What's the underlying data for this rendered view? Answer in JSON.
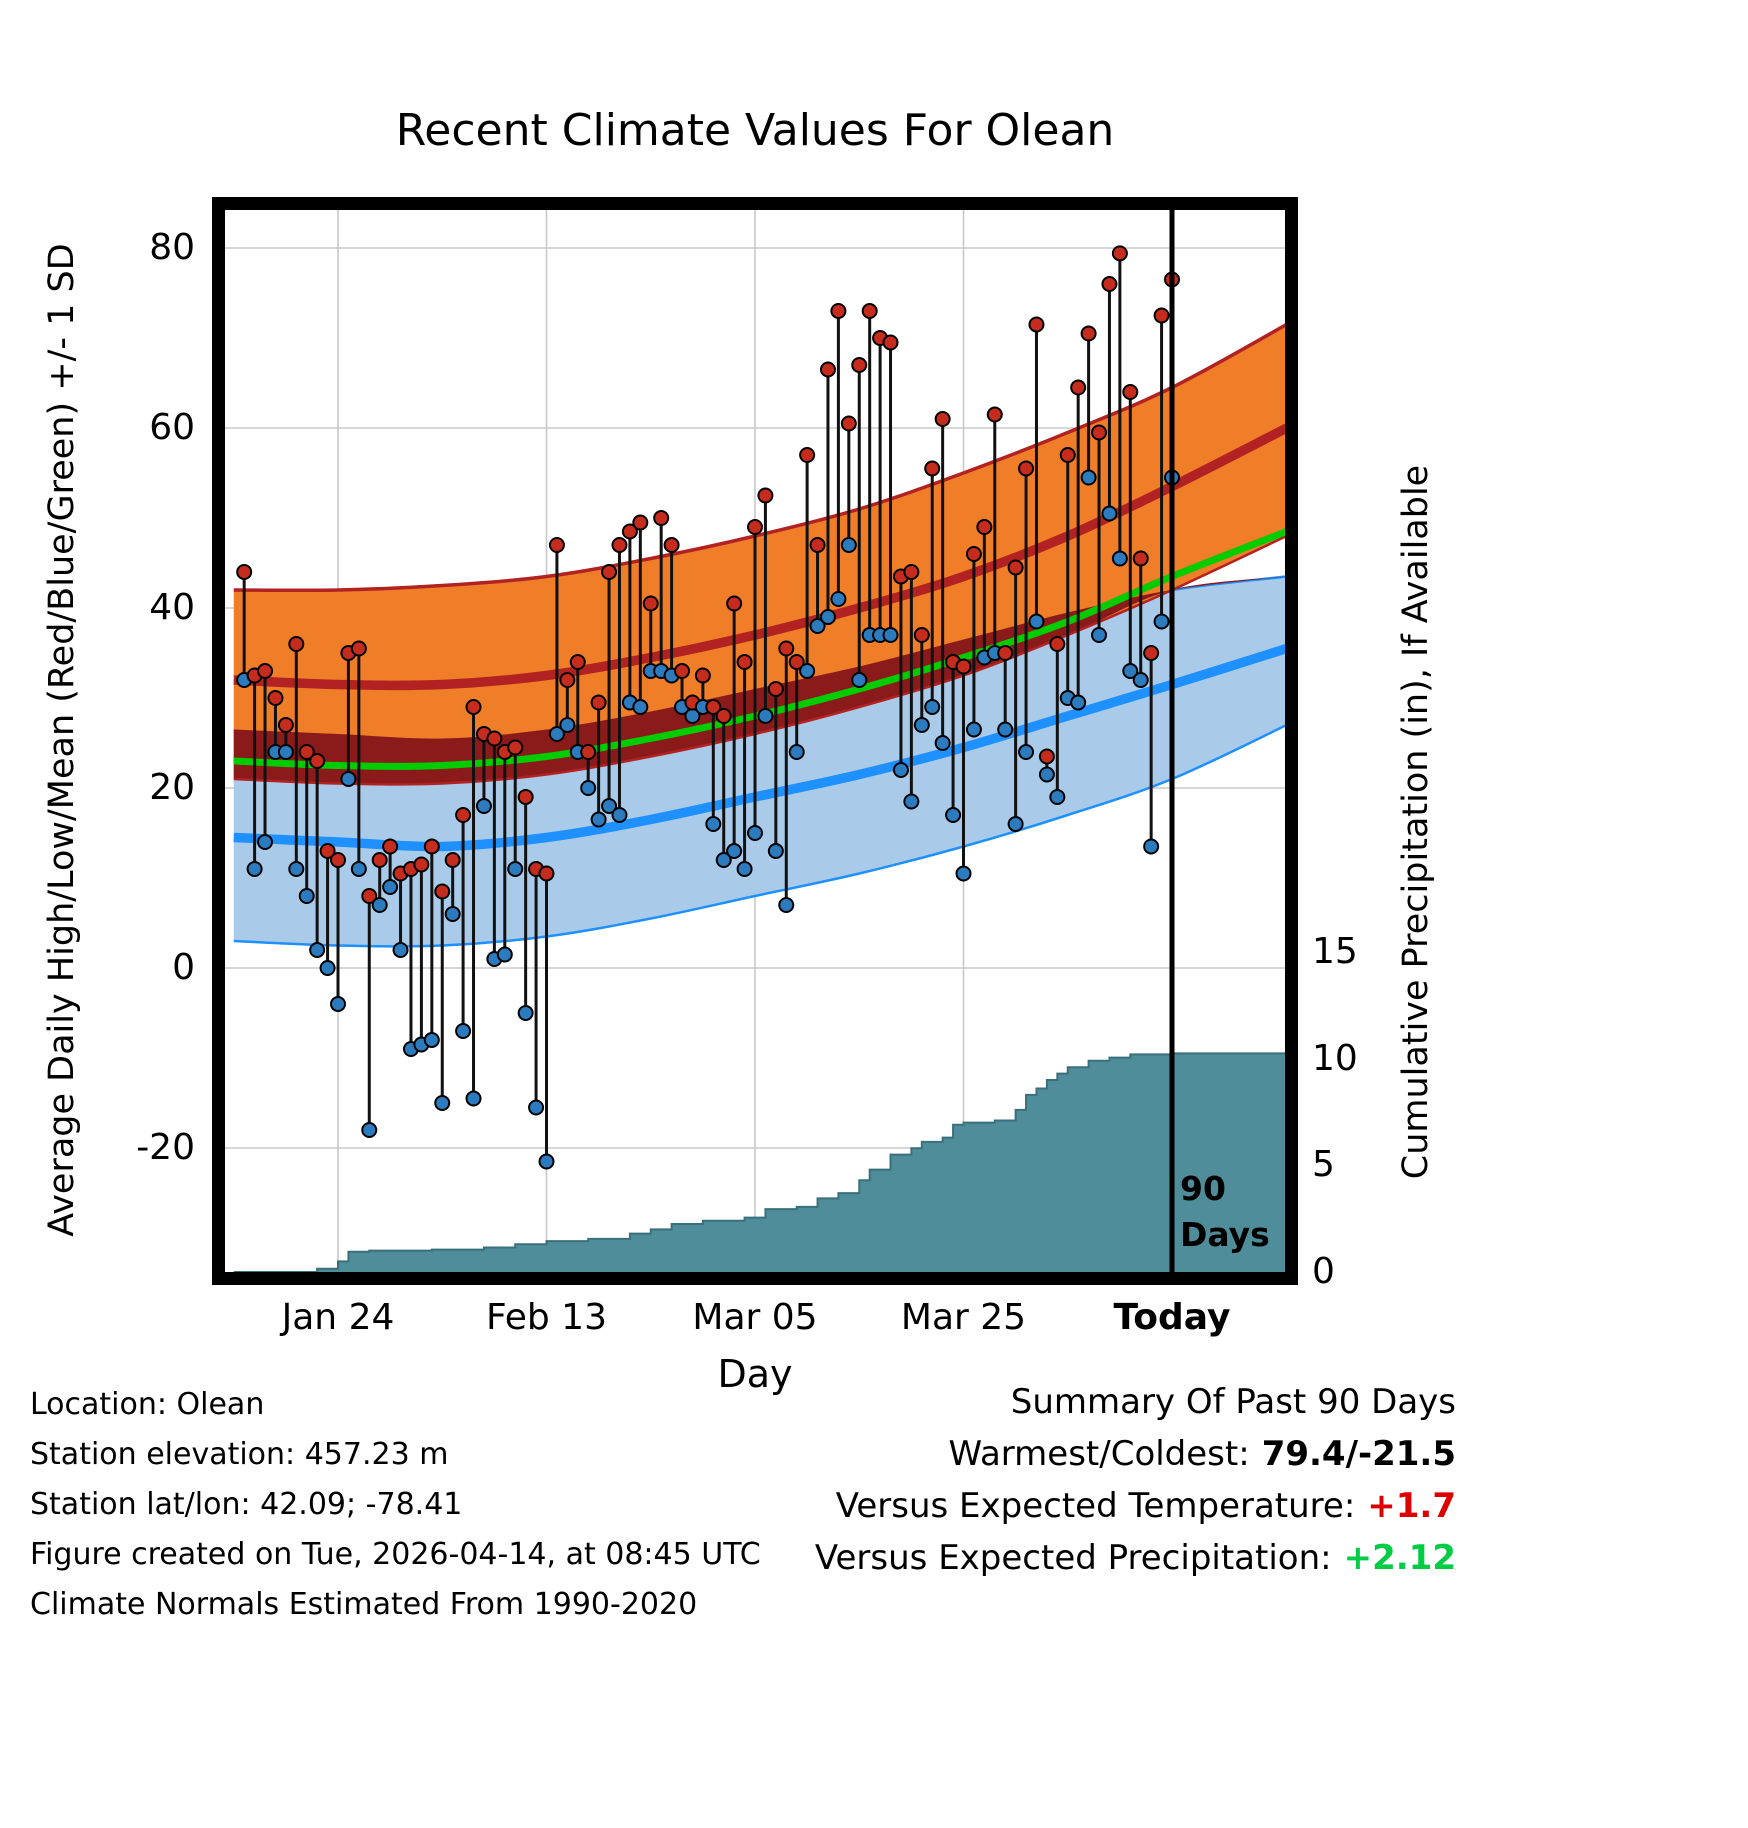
{
  "title": "Recent Climate Values For Olean",
  "axes": {
    "x_label": "Day",
    "y_left_label": "Average Daily High/Low/Mean (Red/Blue/Green) +/- 1 SD",
    "y_right_label": "Cumulative Precipitation (in), If Available",
    "x_ticks": [
      {
        "day": 10,
        "label": "Jan 24",
        "bold": false
      },
      {
        "day": 30,
        "label": "Feb 13",
        "bold": false
      },
      {
        "day": 50,
        "label": "Mar 05",
        "bold": false
      },
      {
        "day": 70,
        "label": "Mar 25",
        "bold": false
      },
      {
        "day": 90,
        "label": "Today",
        "bold": true
      }
    ],
    "y_left_ticks": [
      80,
      60,
      40,
      20,
      0,
      -20
    ],
    "y_right_ticks": [
      15,
      10,
      5,
      0
    ]
  },
  "today_marker": {
    "line1": "90",
    "line2": "Days"
  },
  "footer": {
    "location": "Location: Olean",
    "elevation": "Station elevation: 457.23 m",
    "latlon": "Station lat/lon: 42.09; -78.41",
    "created": "Figure created on Tue, 2026-04-14, at 08:45 UTC",
    "normals": "Climate Normals Estimated From 1990-2020"
  },
  "summary": {
    "title": "Summary Of Past 90 Days",
    "warmest_coldest_label": "Warmest/Coldest:",
    "warmest_coldest_value": "79.4/-21.5",
    "vs_temp_label": "Versus Expected Temperature:",
    "vs_temp_value": "+1.7",
    "vs_precip_label": "Versus Expected Precipitation:",
    "vs_precip_value": "+2.12"
  },
  "colors": {
    "high_band": "#F07D28",
    "high_band_edge": "#B22222",
    "high_mean_line": "#B22222",
    "band_overlap": "#8B1A1A",
    "mean_line": "#00CC00",
    "low_band": "#A9CBE9",
    "low_band_edge": "#1E90FF",
    "low_mean_line": "#1E90FF",
    "precip_fill": "#4E8D99",
    "precip_edge": "#3A707B",
    "high_dot": "#C62C1E",
    "low_dot": "#2B7BBE",
    "grid": "#C8C8C8",
    "frame": "#000000",
    "vs_temp_value_color": "#DD0000",
    "vs_precip_value_color": "#00CC44"
  },
  "chart_data": {
    "type": "composite",
    "description": {
      "red_dots": "Daily high temperature (F)",
      "blue_dots": "Daily low temperature (F)",
      "orange_band": "Normal daily high +/- 1 SD",
      "blue_band": "Normal daily low +/- 1 SD",
      "green_line": "Normal daily mean",
      "teal_area": "Cumulative precipitation (in), right axis"
    },
    "x_unit": "day index, 1 = 90 days ago, 90 = Today",
    "today_day": 90,
    "temp_axis_ticks": [
      -20,
      0,
      20,
      40,
      60,
      80
    ],
    "precip_axis_ticks": [
      0,
      5,
      10,
      15
    ],
    "daily_high": [
      44,
      32.5,
      33,
      30,
      27,
      36,
      24,
      23,
      13,
      12,
      35,
      35.5,
      8,
      12,
      13.5,
      10.5,
      11,
      11.5,
      13.5,
      8.5,
      12,
      17,
      29,
      26,
      25.5,
      24,
      24.5,
      19,
      11,
      10.5,
      47,
      32,
      34,
      24,
      29.5,
      44,
      47,
      48.5,
      49.5,
      40.5,
      50,
      47,
      33,
      29.5,
      32.5,
      29,
      28,
      40.5,
      34,
      49,
      52.5,
      31,
      35.5,
      34,
      57,
      47,
      66.5,
      73,
      60.5,
      67,
      73,
      70,
      69.5,
      43.5,
      44,
      37,
      55.5,
      61,
      34,
      33.5,
      46,
      49,
      61.5,
      35,
      44.5,
      55.5,
      71.5,
      23.5,
      36,
      57,
      64.5,
      70.5,
      59.5,
      76,
      79.4,
      64,
      45.5,
      35,
      72.5,
      76.5
    ],
    "daily_low": [
      32,
      11,
      14,
      24,
      24,
      11,
      8,
      2,
      0,
      -4,
      21,
      11,
      -18,
      7,
      9,
      2,
      -9,
      -8.5,
      -8,
      -15,
      6,
      -7,
      -14.5,
      18,
      1,
      1.5,
      11,
      -5,
      -15.5,
      -21.5,
      26,
      27,
      24,
      20,
      16.5,
      18,
      17,
      29.5,
      29,
      33,
      33,
      32.5,
      29,
      28,
      29,
      16,
      12,
      13,
      11,
      15,
      28,
      13,
      7,
      24,
      33,
      38,
      39,
      41,
      47,
      32,
      37,
      37,
      37,
      22,
      18.5,
      27,
      29,
      25,
      17,
      10.5,
      26.5,
      34.5,
      35,
      26.5,
      16,
      24,
      38.5,
      21.5,
      19,
      30,
      29.5,
      54.5,
      37,
      50.5,
      45.5,
      33,
      32,
      13.5,
      38.5,
      54.5
    ],
    "normals_days": [
      0,
      10,
      20,
      30,
      40,
      50,
      60,
      70,
      80,
      90,
      101
    ],
    "normal_high_upper": [
      42,
      42,
      42.5,
      43.5,
      45.5,
      48,
      51,
      55,
      59.5,
      64.5,
      71.5
    ],
    "normal_high_mean": [
      32,
      31.5,
      31.5,
      32.5,
      34.5,
      37,
      40,
      43.5,
      48,
      53.5,
      60
    ],
    "normal_high_lower": [
      21,
      20.5,
      20.5,
      21.5,
      23.5,
      26,
      29,
      32.5,
      37,
      42,
      48
    ],
    "normal_mean": [
      23,
      22.5,
      22.5,
      23.5,
      25.5,
      28,
      31,
      34.5,
      38.5,
      43.5,
      48.5
    ],
    "normal_low_upper": [
      26.5,
      26,
      25.5,
      26.5,
      28.5,
      31,
      33.5,
      36.5,
      39.5,
      42,
      43.5
    ],
    "normal_low_mean": [
      14.5,
      14,
      13.5,
      14.5,
      16.5,
      19,
      21.5,
      24.5,
      28,
      31.5,
      35.5
    ],
    "normal_low_lower": [
      3,
      2.5,
      2.5,
      3.5,
      5.5,
      8,
      10.5,
      13.5,
      17,
      21,
      27
    ],
    "precip_days": [
      0,
      6,
      8,
      10,
      11,
      13,
      19,
      24,
      27,
      30,
      34,
      38,
      40,
      42,
      45,
      49,
      51,
      54,
      56,
      58,
      60,
      61,
      63,
      65,
      66,
      68,
      69,
      70,
      73,
      75,
      76,
      77,
      78,
      79,
      80,
      82,
      84,
      86,
      90,
      101
    ],
    "precip_values": [
      0,
      0,
      0.15,
      0.5,
      0.95,
      1.0,
      1.05,
      1.15,
      1.3,
      1.45,
      1.55,
      1.8,
      2.0,
      2.25,
      2.4,
      2.55,
      2.95,
      3.05,
      3.45,
      3.7,
      4.3,
      4.8,
      5.5,
      5.8,
      6.1,
      6.3,
      6.9,
      7.0,
      7.1,
      7.6,
      8.3,
      8.6,
      9.0,
      9.3,
      9.6,
      9.9,
      10.05,
      10.2,
      10.25,
      10.3
    ]
  }
}
